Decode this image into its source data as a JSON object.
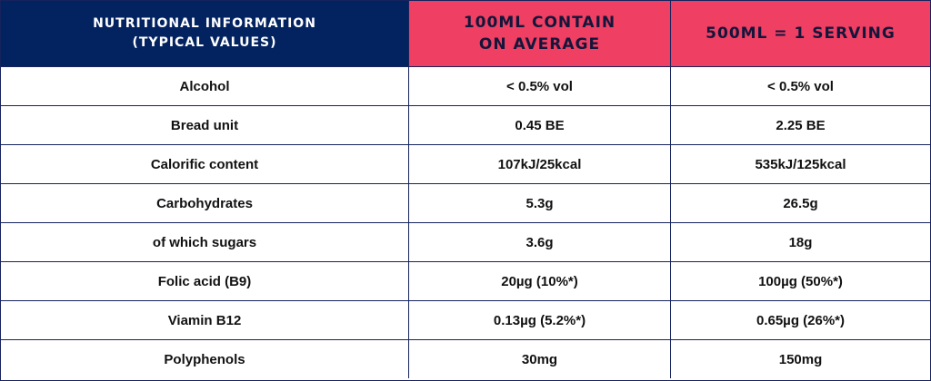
{
  "colors": {
    "header_primary": "#022260",
    "header_accent": "#ef3f63",
    "border": "#16235d",
    "row_background": "#ffffff",
    "text": "#111111"
  },
  "table": {
    "headers": [
      {
        "lines": [
          "NUTRITIONAL INFORMATION",
          "(TYPICAL VALUES)"
        ]
      },
      {
        "lines": [
          "100ML CONTAIN",
          "ON AVERAGE"
        ]
      },
      {
        "lines": [
          "500ML = 1 SERVING"
        ]
      }
    ],
    "rows": [
      {
        "name": "Alcohol",
        "per_100ml": "< 0.5% vol",
        "per_500ml": "< 0.5% vol"
      },
      {
        "name": "Bread unit",
        "per_100ml": "0.45 BE",
        "per_500ml": "2.25 BE"
      },
      {
        "name": "Calorific content",
        "per_100ml": "107kJ/25kcal",
        "per_500ml": "535kJ/125kcal"
      },
      {
        "name": "Carbohydrates",
        "per_100ml": "5.3g",
        "per_500ml": "26.5g"
      },
      {
        "name": "of which sugars",
        "per_100ml": "3.6g",
        "per_500ml": "18g"
      },
      {
        "name": "Folic acid (B9)",
        "per_100ml": "20µg (10%*)",
        "per_500ml": "100µg (50%*)"
      },
      {
        "name": "Viamin B12",
        "per_100ml": "0.13µg (5.2%*)",
        "per_500ml": "0.65µg (26%*)"
      },
      {
        "name": "Polyphenols",
        "per_100ml": "30mg",
        "per_500ml": "150mg"
      }
    ]
  }
}
